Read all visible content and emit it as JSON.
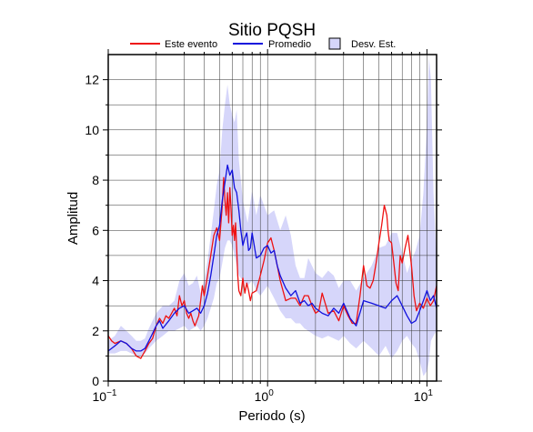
{
  "chart_data": {
    "type": "line",
    "title": "Sitio PQSH",
    "xlabel": "Periodo (s)",
    "ylabel": "Amplitud",
    "xscale": "log",
    "xlim": [
      0.1,
      11.5
    ],
    "ylim": [
      0,
      13
    ],
    "xticks": [
      {
        "value": 0.1,
        "base": "10",
        "exp": "−1"
      },
      {
        "value": 1,
        "base": "10",
        "exp": "0"
      },
      {
        "value": 10,
        "base": "10",
        "exp": "1"
      }
    ],
    "yticks": [
      0,
      2,
      4,
      6,
      8,
      10,
      12
    ],
    "grid": true,
    "legend_position": "top",
    "legend": [
      {
        "label": "Este evento",
        "kind": "line",
        "color": "#ee1111"
      },
      {
        "label": "Promedio",
        "kind": "line",
        "color": "#1111dd"
      },
      {
        "label": "Desv. Est.",
        "kind": "band",
        "color": "#d6d6fa"
      }
    ],
    "series": [
      {
        "name": "Este evento",
        "color": "#ee1111",
        "x": [
          0.1,
          0.105,
          0.11,
          0.12,
          0.13,
          0.14,
          0.15,
          0.16,
          0.17,
          0.18,
          0.19,
          0.2,
          0.21,
          0.22,
          0.23,
          0.24,
          0.25,
          0.26,
          0.27,
          0.28,
          0.29,
          0.3,
          0.31,
          0.32,
          0.33,
          0.34,
          0.35,
          0.37,
          0.38,
          0.39,
          0.4,
          0.42,
          0.44,
          0.46,
          0.48,
          0.5,
          0.52,
          0.53,
          0.54,
          0.55,
          0.56,
          0.57,
          0.58,
          0.59,
          0.6,
          0.61,
          0.62,
          0.63,
          0.64,
          0.65,
          0.66,
          0.68,
          0.7,
          0.72,
          0.74,
          0.76,
          0.78,
          0.8,
          0.85,
          0.9,
          0.95,
          1.0,
          1.05,
          1.1,
          1.15,
          1.2,
          1.3,
          1.4,
          1.5,
          1.6,
          1.7,
          1.8,
          1.9,
          2.0,
          2.1,
          2.2,
          2.4,
          2.6,
          2.8,
          3.0,
          3.2,
          3.4,
          3.6,
          3.8,
          4.0,
          4.2,
          4.4,
          4.6,
          4.8,
          5.0,
          5.2,
          5.4,
          5.6,
          5.7,
          5.8,
          6.0,
          6.2,
          6.4,
          6.6,
          6.8,
          7.0,
          7.3,
          7.6,
          8.0,
          8.3,
          8.6,
          9.0,
          9.5,
          10.0,
          10.5,
          11.0,
          11.5
        ],
        "y": [
          1.8,
          1.6,
          1.5,
          1.6,
          1.5,
          1.3,
          1.0,
          0.9,
          1.2,
          1.5,
          1.7,
          2.2,
          2.5,
          2.3,
          2.6,
          2.5,
          2.7,
          2.9,
          2.6,
          3.4,
          3.0,
          3.2,
          2.7,
          2.5,
          2.7,
          2.4,
          2.2,
          2.6,
          3.2,
          3.8,
          3.4,
          4.2,
          5.0,
          5.8,
          6.1,
          5.6,
          7.0,
          8.1,
          7.2,
          6.6,
          7.5,
          6.3,
          7.7,
          6.9,
          5.8,
          6.2,
          5.6,
          6.3,
          5.3,
          4.2,
          3.6,
          3.4,
          4.1,
          3.5,
          3.9,
          3.6,
          3.2,
          3.5,
          3.6,
          4.2,
          4.8,
          5.5,
          5.7,
          5.2,
          4.6,
          4.0,
          3.2,
          3.3,
          3.3,
          3.0,
          3.4,
          3.4,
          3.0,
          2.7,
          2.8,
          3.5,
          2.7,
          2.8,
          2.4,
          3.0,
          2.6,
          2.3,
          2.3,
          3.4,
          4.6,
          3.8,
          3.7,
          4.0,
          4.7,
          5.5,
          6.2,
          7.0,
          6.6,
          6.0,
          5.6,
          5.5,
          4.7,
          3.9,
          3.6,
          5.0,
          4.7,
          5.3,
          5.8,
          4.6,
          3.4,
          2.8,
          3.1,
          2.9,
          3.3,
          3.0,
          3.2,
          3.8
        ]
      },
      {
        "name": "Promedio",
        "color": "#1111dd",
        "x": [
          0.1,
          0.11,
          0.12,
          0.13,
          0.14,
          0.15,
          0.16,
          0.17,
          0.18,
          0.19,
          0.2,
          0.21,
          0.22,
          0.24,
          0.26,
          0.28,
          0.3,
          0.32,
          0.34,
          0.36,
          0.38,
          0.4,
          0.42,
          0.44,
          0.46,
          0.48,
          0.5,
          0.52,
          0.54,
          0.56,
          0.58,
          0.6,
          0.62,
          0.64,
          0.66,
          0.68,
          0.7,
          0.72,
          0.74,
          0.76,
          0.78,
          0.8,
          0.85,
          0.9,
          0.95,
          1.0,
          1.05,
          1.1,
          1.15,
          1.2,
          1.3,
          1.4,
          1.5,
          1.6,
          1.7,
          1.8,
          1.9,
          2.0,
          2.2,
          2.4,
          2.6,
          2.8,
          3.0,
          3.3,
          3.6,
          4.0,
          4.5,
          5.0,
          5.5,
          6.0,
          6.5,
          7.0,
          7.5,
          8.0,
          8.5,
          9.0,
          9.5,
          10.0,
          10.5,
          11.0,
          11.5
        ],
        "y": [
          1.2,
          1.4,
          1.6,
          1.5,
          1.3,
          1.2,
          1.2,
          1.3,
          1.6,
          1.9,
          2.2,
          2.4,
          2.1,
          2.4,
          2.7,
          2.9,
          3.0,
          2.7,
          2.8,
          2.9,
          2.7,
          3.0,
          3.5,
          4.2,
          5.0,
          5.8,
          6.2,
          7.2,
          7.9,
          8.6,
          8.2,
          8.4,
          7.7,
          7.5,
          6.8,
          6.0,
          5.4,
          5.7,
          5.9,
          5.2,
          5.3,
          5.9,
          4.9,
          5.0,
          5.3,
          5.4,
          5.1,
          5.2,
          4.6,
          4.2,
          3.7,
          3.4,
          3.6,
          3.1,
          3.2,
          3.0,
          3.1,
          2.9,
          2.7,
          2.6,
          2.9,
          2.7,
          3.1,
          2.5,
          2.2,
          3.2,
          3.1,
          3.0,
          2.9,
          3.2,
          3.4,
          3.0,
          2.6,
          2.3,
          2.4,
          2.8,
          3.2,
          3.6,
          3.2,
          3.4,
          2.9
        ]
      }
    ],
    "band": {
      "name": "Desv. Est.",
      "color": "#d6d6fa",
      "x": [
        0.1,
        0.11,
        0.12,
        0.13,
        0.14,
        0.15,
        0.16,
        0.17,
        0.18,
        0.2,
        0.22,
        0.24,
        0.26,
        0.28,
        0.3,
        0.32,
        0.34,
        0.36,
        0.38,
        0.4,
        0.42,
        0.44,
        0.46,
        0.48,
        0.5,
        0.52,
        0.54,
        0.56,
        0.58,
        0.6,
        0.62,
        0.64,
        0.66,
        0.7,
        0.75,
        0.8,
        0.85,
        0.9,
        1.0,
        1.1,
        1.2,
        1.3,
        1.4,
        1.5,
        1.6,
        1.7,
        1.8,
        2.0,
        2.2,
        2.4,
        2.6,
        2.8,
        3.0,
        3.3,
        3.6,
        4.0,
        4.5,
        5.0,
        5.5,
        6.0,
        6.5,
        7.0,
        7.5,
        8.0,
        8.5,
        9.0,
        9.5,
        10.0,
        10.3,
        10.6,
        11.0,
        11.5
      ],
      "upper": [
        1.6,
        1.8,
        2.2,
        2.0,
        1.8,
        1.6,
        1.6,
        1.7,
        2.1,
        2.7,
        3.0,
        3.0,
        3.2,
        4.0,
        4.3,
        3.8,
        3.9,
        4.2,
        3.5,
        4.0,
        4.8,
        5.8,
        6.8,
        7.8,
        8.4,
        10.0,
        11.0,
        11.8,
        11.0,
        10.6,
        10.3,
        10.8,
        8.8,
        7.2,
        6.3,
        7.6,
        6.6,
        7.4,
        6.6,
        6.8,
        6.0,
        6.6,
        5.8,
        4.6,
        4.1,
        4.1,
        4.9,
        4.3,
        4.1,
        4.4,
        4.2,
        3.7,
        4.0,
        4.0,
        3.6,
        4.1,
        4.6,
        5.3,
        5.4,
        5.9,
        5.9,
        5.1,
        4.3,
        4.8,
        5.2,
        5.8,
        7.5,
        10.2,
        12.9,
        12.0,
        7.5,
        4.8
      ],
      "lower": [
        1.1,
        1.1,
        1.2,
        1.2,
        1.1,
        1.0,
        1.0,
        1.1,
        1.3,
        1.6,
        1.8,
        2.0,
        2.0,
        2.1,
        2.2,
        2.0,
        2.1,
        2.2,
        2.0,
        2.2,
        2.5,
        2.9,
        3.3,
        3.9,
        4.1,
        4.7,
        5.3,
        5.6,
        5.6,
        5.4,
        5.0,
        4.6,
        4.2,
        4.0,
        3.8,
        4.0,
        3.6,
        3.4,
        3.8,
        3.3,
        2.8,
        2.5,
        2.5,
        2.3,
        2.3,
        2.1,
        2.0,
        1.8,
        1.7,
        1.8,
        1.7,
        1.6,
        1.8,
        1.5,
        1.3,
        1.6,
        1.3,
        1.0,
        1.4,
        0.9,
        1.2,
        1.6,
        1.8,
        1.5,
        1.3,
        0.8,
        0.2,
        0.4,
        0.8,
        1.6,
        1.8,
        2.0
      ]
    }
  }
}
